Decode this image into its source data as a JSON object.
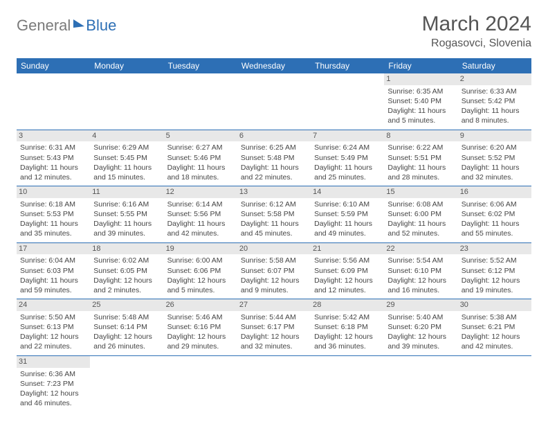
{
  "logo": {
    "part1": "General",
    "part2": "Blue"
  },
  "title": "March 2024",
  "location": "Rogasovci, Slovenia",
  "colors": {
    "header_bg": "#2d6fb5",
    "daynum_bg": "#e8e8e8"
  },
  "weekdays": [
    "Sunday",
    "Monday",
    "Tuesday",
    "Wednesday",
    "Thursday",
    "Friday",
    "Saturday"
  ],
  "weeks": [
    [
      null,
      null,
      null,
      null,
      null,
      {
        "n": "1",
        "sr": "6:35 AM",
        "ss": "5:40 PM",
        "dl": "11 hours and 5 minutes."
      },
      {
        "n": "2",
        "sr": "6:33 AM",
        "ss": "5:42 PM",
        "dl": "11 hours and 8 minutes."
      }
    ],
    [
      {
        "n": "3",
        "sr": "6:31 AM",
        "ss": "5:43 PM",
        "dl": "11 hours and 12 minutes."
      },
      {
        "n": "4",
        "sr": "6:29 AM",
        "ss": "5:45 PM",
        "dl": "11 hours and 15 minutes."
      },
      {
        "n": "5",
        "sr": "6:27 AM",
        "ss": "5:46 PM",
        "dl": "11 hours and 18 minutes."
      },
      {
        "n": "6",
        "sr": "6:25 AM",
        "ss": "5:48 PM",
        "dl": "11 hours and 22 minutes."
      },
      {
        "n": "7",
        "sr": "6:24 AM",
        "ss": "5:49 PM",
        "dl": "11 hours and 25 minutes."
      },
      {
        "n": "8",
        "sr": "6:22 AM",
        "ss": "5:51 PM",
        "dl": "11 hours and 28 minutes."
      },
      {
        "n": "9",
        "sr": "6:20 AM",
        "ss": "5:52 PM",
        "dl": "11 hours and 32 minutes."
      }
    ],
    [
      {
        "n": "10",
        "sr": "6:18 AM",
        "ss": "5:53 PM",
        "dl": "11 hours and 35 minutes."
      },
      {
        "n": "11",
        "sr": "6:16 AM",
        "ss": "5:55 PM",
        "dl": "11 hours and 39 minutes."
      },
      {
        "n": "12",
        "sr": "6:14 AM",
        "ss": "5:56 PM",
        "dl": "11 hours and 42 minutes."
      },
      {
        "n": "13",
        "sr": "6:12 AM",
        "ss": "5:58 PM",
        "dl": "11 hours and 45 minutes."
      },
      {
        "n": "14",
        "sr": "6:10 AM",
        "ss": "5:59 PM",
        "dl": "11 hours and 49 minutes."
      },
      {
        "n": "15",
        "sr": "6:08 AM",
        "ss": "6:00 PM",
        "dl": "11 hours and 52 minutes."
      },
      {
        "n": "16",
        "sr": "6:06 AM",
        "ss": "6:02 PM",
        "dl": "11 hours and 55 minutes."
      }
    ],
    [
      {
        "n": "17",
        "sr": "6:04 AM",
        "ss": "6:03 PM",
        "dl": "11 hours and 59 minutes."
      },
      {
        "n": "18",
        "sr": "6:02 AM",
        "ss": "6:05 PM",
        "dl": "12 hours and 2 minutes."
      },
      {
        "n": "19",
        "sr": "6:00 AM",
        "ss": "6:06 PM",
        "dl": "12 hours and 5 minutes."
      },
      {
        "n": "20",
        "sr": "5:58 AM",
        "ss": "6:07 PM",
        "dl": "12 hours and 9 minutes."
      },
      {
        "n": "21",
        "sr": "5:56 AM",
        "ss": "6:09 PM",
        "dl": "12 hours and 12 minutes."
      },
      {
        "n": "22",
        "sr": "5:54 AM",
        "ss": "6:10 PM",
        "dl": "12 hours and 16 minutes."
      },
      {
        "n": "23",
        "sr": "5:52 AM",
        "ss": "6:12 PM",
        "dl": "12 hours and 19 minutes."
      }
    ],
    [
      {
        "n": "24",
        "sr": "5:50 AM",
        "ss": "6:13 PM",
        "dl": "12 hours and 22 minutes."
      },
      {
        "n": "25",
        "sr": "5:48 AM",
        "ss": "6:14 PM",
        "dl": "12 hours and 26 minutes."
      },
      {
        "n": "26",
        "sr": "5:46 AM",
        "ss": "6:16 PM",
        "dl": "12 hours and 29 minutes."
      },
      {
        "n": "27",
        "sr": "5:44 AM",
        "ss": "6:17 PM",
        "dl": "12 hours and 32 minutes."
      },
      {
        "n": "28",
        "sr": "5:42 AM",
        "ss": "6:18 PM",
        "dl": "12 hours and 36 minutes."
      },
      {
        "n": "29",
        "sr": "5:40 AM",
        "ss": "6:20 PM",
        "dl": "12 hours and 39 minutes."
      },
      {
        "n": "30",
        "sr": "5:38 AM",
        "ss": "6:21 PM",
        "dl": "12 hours and 42 minutes."
      }
    ],
    [
      {
        "n": "31",
        "sr": "6:36 AM",
        "ss": "7:23 PM",
        "dl": "12 hours and 46 minutes."
      },
      null,
      null,
      null,
      null,
      null,
      null
    ]
  ],
  "labels": {
    "sunrise": "Sunrise:",
    "sunset": "Sunset:",
    "daylight": "Daylight:"
  }
}
